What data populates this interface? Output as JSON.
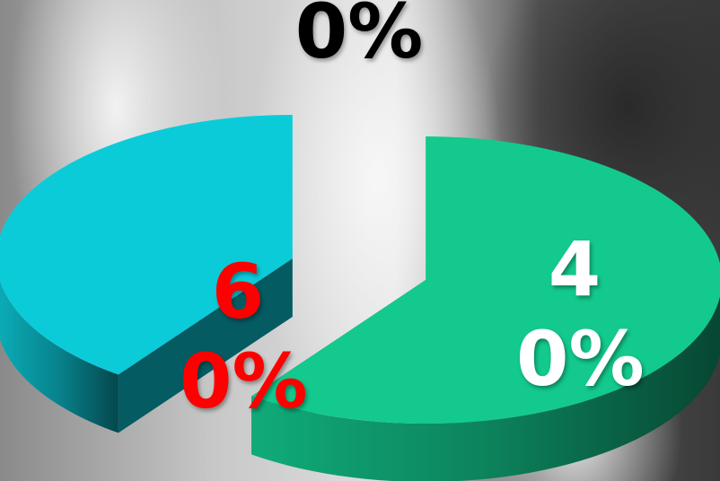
{
  "chart_data": {
    "type": "pie",
    "values": [
      60,
      40,
      0
    ],
    "value_labels": [
      "60%",
      "40%",
      "0%"
    ],
    "colors": [
      "#13c98e",
      "#0ccbd9",
      null
    ],
    "label_colors": [
      "#ff0000",
      "#ffffff",
      "#000000"
    ]
  }
}
